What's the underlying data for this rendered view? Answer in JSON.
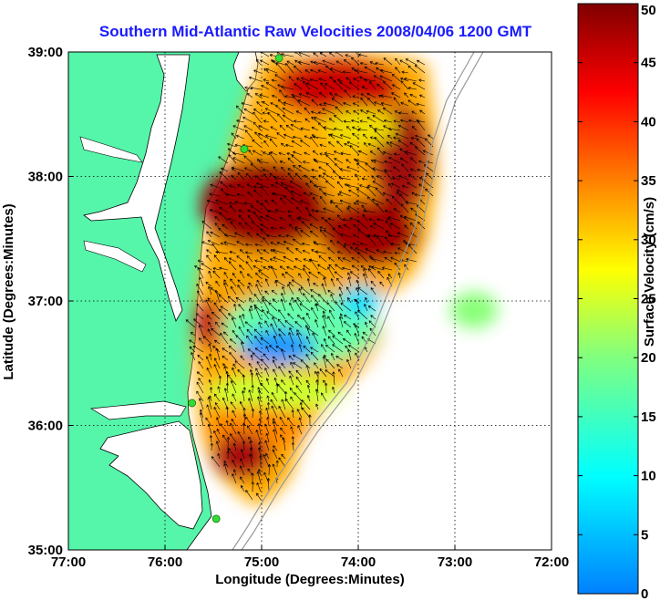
{
  "title": "Southern Mid-Atlantic Raw Velocities 2008/04/06 1200 GMT",
  "x_axis": {
    "label": "Longitude (Degrees:Minutes)",
    "range": [
      -77,
      -72
    ],
    "ticks": [
      {
        "value": -77,
        "label": "77:00"
      },
      {
        "value": -76,
        "label": "76:00"
      },
      {
        "value": -75,
        "label": "75:00"
      },
      {
        "value": -74,
        "label": "74:00"
      },
      {
        "value": -73,
        "label": "73:00"
      },
      {
        "value": -72,
        "label": "72:00"
      }
    ]
  },
  "y_axis": {
    "label": "Latitude (Degrees:Minutes)",
    "range": [
      35,
      39
    ],
    "ticks": [
      {
        "value": 35,
        "label": "35:00"
      },
      {
        "value": 36,
        "label": "36:00"
      },
      {
        "value": 37,
        "label": "37:00"
      },
      {
        "value": 38,
        "label": "38:00"
      },
      {
        "value": 39,
        "label": "39:00"
      }
    ]
  },
  "grid": "dotted",
  "colorbar": {
    "label": "Surface Velocity (cm/s)",
    "range": [
      0,
      50
    ],
    "ticks": [
      {
        "value": 0,
        "label": "0"
      },
      {
        "value": 5,
        "label": "5"
      },
      {
        "value": 10,
        "label": "10"
      },
      {
        "value": 15,
        "label": "15"
      },
      {
        "value": 20,
        "label": "20"
      },
      {
        "value": 25,
        "label": "25"
      },
      {
        "value": 30,
        "label": "30"
      },
      {
        "value": 35,
        "label": "35"
      },
      {
        "value": 40,
        "label": "40"
      },
      {
        "value": 45,
        "label": "45"
      },
      {
        "value": 50,
        "label": "50"
      }
    ]
  },
  "colors": {
    "land": "#55f5aa",
    "water": "#ffffff",
    "title": "#1a1aff",
    "station": "#33dd33"
  },
  "stations": [
    {
      "lon": -74.82,
      "lat": 38.95
    },
    {
      "lon": -75.18,
      "lat": 38.22
    },
    {
      "lon": -75.72,
      "lat": 36.18
    },
    {
      "lon": -75.47,
      "lat": 35.25
    }
  ]
}
